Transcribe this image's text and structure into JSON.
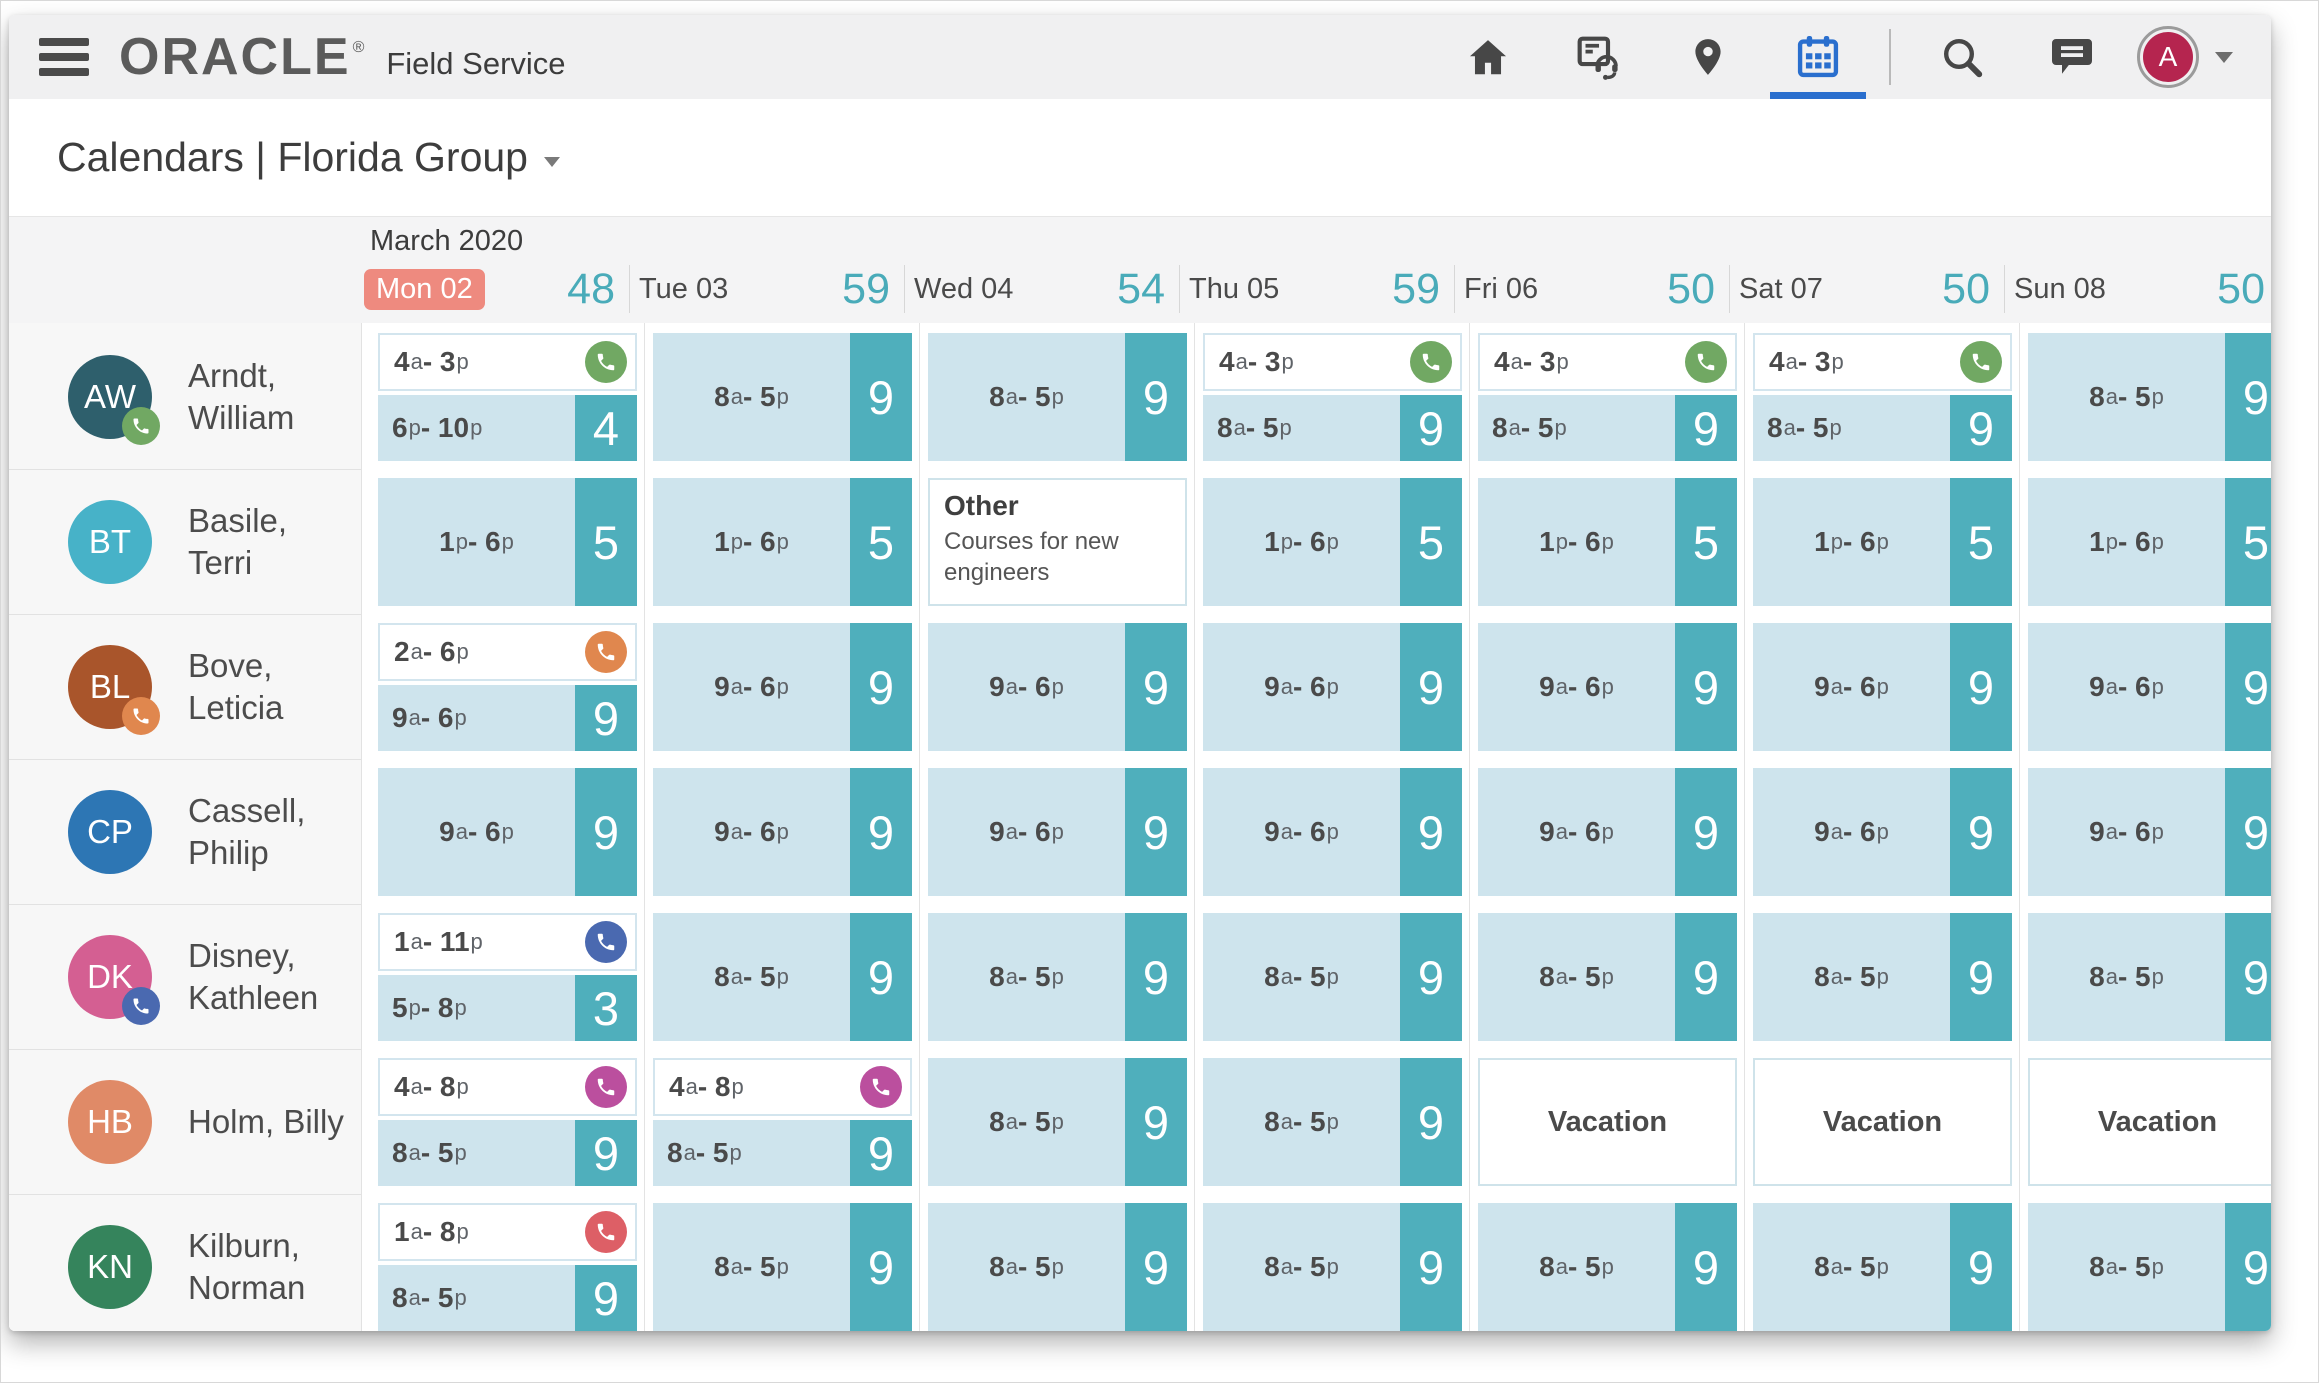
{
  "toolbar": {
    "brand": "ORACLE",
    "brand_mark": "®",
    "product": "Field Service",
    "icons": [
      "home-icon",
      "dispatch-icon",
      "map-pin-icon",
      "calendar-icon",
      "search-icon",
      "messages-icon"
    ],
    "active_icon": "calendar-icon",
    "avatar_initial": "A",
    "active_color": "#2a6fce",
    "avatar_color": "#b5254f"
  },
  "title": {
    "text": "Calendars | Florida Group"
  },
  "calendar": {
    "month_label": "March 2020",
    "days": [
      {
        "label": "Mon 02",
        "count": "48",
        "today": true
      },
      {
        "label": "Tue 03",
        "count": "59",
        "today": false
      },
      {
        "label": "Wed 04",
        "count": "54",
        "today": false
      },
      {
        "label": "Thu 05",
        "count": "59",
        "today": false
      },
      {
        "label": "Fri 06",
        "count": "50",
        "today": false
      },
      {
        "label": "Sat 07",
        "count": "50",
        "today": false
      },
      {
        "label": "Sun 08",
        "count": "50",
        "today": false
      }
    ],
    "colors": {
      "accent_teal": "#49abb9",
      "band_blue": "#cee4ed",
      "square_teal": "#4fafbc",
      "today_badge": "#ee8a7f"
    },
    "rows": [
      {
        "initials": "AW",
        "name": "Arndt, William",
        "avatar_color": "#2e5f6c",
        "badge_color": "#71a863",
        "cells": [
          {
            "type": "double",
            "shift": "4a - 3p",
            "phone": "#71a863",
            "time": "6p - 10p",
            "count": "4"
          },
          {
            "type": "single",
            "time": "8a - 5p",
            "count": "9"
          },
          {
            "type": "single",
            "time": "8a - 5p",
            "count": "9"
          },
          {
            "type": "double",
            "shift": "4a - 3p",
            "phone": "#71a863",
            "time": "8a - 5p",
            "count": "9"
          },
          {
            "type": "double",
            "shift": "4a - 3p",
            "phone": "#71a863",
            "time": "8a - 5p",
            "count": "9"
          },
          {
            "type": "double",
            "shift": "4a - 3p",
            "phone": "#71a863",
            "time": "8a - 5p",
            "count": "9"
          },
          {
            "type": "single",
            "time": "8a - 5p",
            "count": "9"
          }
        ]
      },
      {
        "initials": "BT",
        "name": "Basile, Terri",
        "avatar_color": "#47b2c8",
        "badge_color": null,
        "cells": [
          {
            "type": "single",
            "time": "1p - 6p",
            "count": "5"
          },
          {
            "type": "single",
            "time": "1p - 6p",
            "count": "5"
          },
          {
            "type": "note",
            "title": "Other",
            "description": "Courses for new engineers"
          },
          {
            "type": "single",
            "time": "1p - 6p",
            "count": "5"
          },
          {
            "type": "single",
            "time": "1p - 6p",
            "count": "5"
          },
          {
            "type": "single",
            "time": "1p - 6p",
            "count": "5"
          },
          {
            "type": "single",
            "time": "1p - 6p",
            "count": "5"
          }
        ]
      },
      {
        "initials": "BL",
        "name": "Bove, Leticia",
        "avatar_color": "#a9552b",
        "badge_color": "#e0874e",
        "cells": [
          {
            "type": "double",
            "shift": "2a - 6p",
            "phone": "#e0874e",
            "time": "9a - 6p",
            "count": "9"
          },
          {
            "type": "single",
            "time": "9a - 6p",
            "count": "9"
          },
          {
            "type": "single",
            "time": "9a - 6p",
            "count": "9"
          },
          {
            "type": "single",
            "time": "9a - 6p",
            "count": "9"
          },
          {
            "type": "single",
            "time": "9a - 6p",
            "count": "9"
          },
          {
            "type": "single",
            "time": "9a - 6p",
            "count": "9"
          },
          {
            "type": "single",
            "time": "9a - 6p",
            "count": "9"
          }
        ]
      },
      {
        "initials": "CP",
        "name": "Cassell, Philip",
        "avatar_color": "#2d76b4",
        "badge_color": null,
        "cells": [
          {
            "type": "single",
            "time": "9a - 6p",
            "count": "9"
          },
          {
            "type": "single",
            "time": "9a - 6p",
            "count": "9"
          },
          {
            "type": "single",
            "time": "9a - 6p",
            "count": "9"
          },
          {
            "type": "single",
            "time": "9a - 6p",
            "count": "9"
          },
          {
            "type": "single",
            "time": "9a - 6p",
            "count": "9"
          },
          {
            "type": "single",
            "time": "9a - 6p",
            "count": "9"
          },
          {
            "type": "single",
            "time": "9a - 6p",
            "count": "9"
          }
        ]
      },
      {
        "initials": "DK",
        "name": "Disney, Kathleen",
        "avatar_color": "#d45f92",
        "badge_color": "#4a69b0",
        "cells": [
          {
            "type": "double",
            "shift": "1a - 11p",
            "phone": "#4a69b0",
            "time": "5p - 8p",
            "count": "3"
          },
          {
            "type": "single",
            "time": "8a - 5p",
            "count": "9"
          },
          {
            "type": "single",
            "time": "8a - 5p",
            "count": "9"
          },
          {
            "type": "single",
            "time": "8a - 5p",
            "count": "9"
          },
          {
            "type": "single",
            "time": "8a - 5p",
            "count": "9"
          },
          {
            "type": "single",
            "time": "8a - 5p",
            "count": "9"
          },
          {
            "type": "single",
            "time": "8a - 5p",
            "count": "9"
          }
        ]
      },
      {
        "initials": "HB",
        "name": "Holm, Billy",
        "avatar_color": "#e08a67",
        "badge_color": null,
        "cells": [
          {
            "type": "double",
            "shift": "4a - 8p",
            "phone": "#bb4f9e",
            "time": "8a - 5p",
            "count": "9"
          },
          {
            "type": "double",
            "shift": "4a - 8p",
            "phone": "#bb4f9e",
            "time": "8a - 5p",
            "count": "9"
          },
          {
            "type": "single",
            "time": "8a - 5p",
            "count": "9"
          },
          {
            "type": "single",
            "time": "8a - 5p",
            "count": "9"
          },
          {
            "type": "vacation",
            "label": "Vacation"
          },
          {
            "type": "vacation",
            "label": "Vacation"
          },
          {
            "type": "vacation",
            "label": "Vacation"
          }
        ]
      },
      {
        "initials": "KN",
        "name": "Kilburn, Norman",
        "avatar_color": "#35845c",
        "badge_color": null,
        "cells": [
          {
            "type": "double",
            "shift": "1a - 8p",
            "phone": "#dd5f66",
            "time": "8a - 5p",
            "count": "9"
          },
          {
            "type": "single",
            "time": "8a - 5p",
            "count": "9"
          },
          {
            "type": "single",
            "time": "8a - 5p",
            "count": "9"
          },
          {
            "type": "single",
            "time": "8a - 5p",
            "count": "9"
          },
          {
            "type": "single",
            "time": "8a - 5p",
            "count": "9"
          },
          {
            "type": "single",
            "time": "8a - 5p",
            "count": "9"
          },
          {
            "type": "single",
            "time": "8a - 5p",
            "count": "9"
          }
        ]
      }
    ]
  }
}
